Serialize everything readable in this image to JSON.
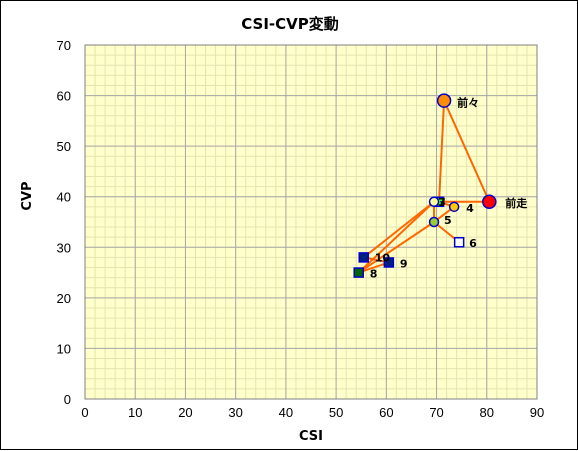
{
  "chart_data": {
    "type": "scatter",
    "title": "CSI-CVP変動",
    "xlabel": "CSI",
    "ylabel": "CVP",
    "xlim": [
      0,
      90
    ],
    "ylim": [
      0,
      70
    ],
    "x_ticks": [
      "0",
      "10",
      "20",
      "30",
      "40",
      "50",
      "60",
      "70",
      "80",
      "90"
    ],
    "y_ticks": [
      "0",
      "10",
      "20",
      "30",
      "40",
      "50",
      "60",
      "70"
    ],
    "grid": true,
    "legend": "none",
    "plot_background": "#FFFFCC",
    "line_color": "#FF6600",
    "connecting_line_order": [
      "前々",
      "前走",
      "3"
    ],
    "points": [
      {
        "label": "前走",
        "x": 80.5,
        "y": 39,
        "marker": "circle",
        "fill": "#FF0000",
        "stroke": "#0000CC",
        "size": "large"
      },
      {
        "label": "前々",
        "x": 71.5,
        "y": 59,
        "marker": "circle",
        "fill": "#FF8C00",
        "stroke": "#0000CC",
        "size": "large"
      },
      {
        "label": "3",
        "x": 70.5,
        "y": 39,
        "marker": "square",
        "fill": "#33FF33",
        "stroke": "#0000CC",
        "size": "small"
      },
      {
        "label": "4",
        "x": 73.5,
        "y": 38,
        "marker": "circle",
        "fill": "#FFCC00",
        "stroke": "#0000CC",
        "size": "small"
      },
      {
        "label": "5",
        "x": 69.5,
        "y": 35,
        "marker": "circle",
        "fill": "#99CC33",
        "stroke": "#0000CC",
        "size": "small"
      },
      {
        "label": "6",
        "x": 74.5,
        "y": 31,
        "marker": "square",
        "fill": "#FFFFFF",
        "stroke": "#0000CC",
        "size": "small"
      },
      {
        "label": "7",
        "x": 69.5,
        "y": 39,
        "marker": "circle",
        "fill": "#FFFF99",
        "stroke": "#0000CC",
        "size": "small"
      },
      {
        "label": "8",
        "x": 54.5,
        "y": 25,
        "marker": "square",
        "fill": "#006600",
        "stroke": "#0000CC",
        "size": "small"
      },
      {
        "label": "9",
        "x": 60.5,
        "y": 27,
        "marker": "square",
        "fill": "#002080",
        "stroke": "#0000CC",
        "size": "small"
      },
      {
        "label": "10",
        "x": 55.5,
        "y": 28,
        "marker": "square",
        "fill": "#002080",
        "stroke": "#0000CC",
        "size": "small"
      }
    ],
    "segments": [
      [
        "3",
        "前々"
      ],
      [
        "前々",
        "前走"
      ],
      [
        "前走",
        "3"
      ],
      [
        "3",
        "7"
      ],
      [
        "7",
        "5"
      ],
      [
        "5",
        "6"
      ],
      [
        "3",
        "4"
      ],
      [
        "4",
        "5"
      ],
      [
        "7",
        "10"
      ],
      [
        "7",
        "8"
      ],
      [
        "5",
        "8"
      ],
      [
        "10",
        "9"
      ],
      [
        "8",
        "9"
      ]
    ]
  }
}
